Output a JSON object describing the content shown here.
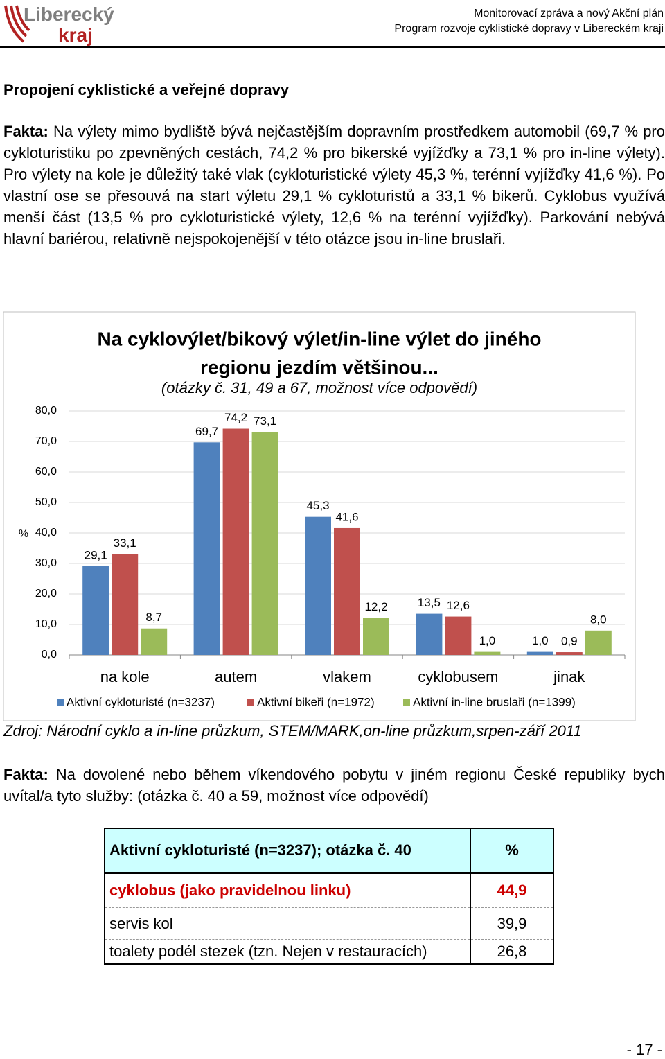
{
  "header": {
    "logo_top": "Liberecký",
    "logo_bottom": "kraj",
    "line1": "Monitorovací zpráva a nový Akční plán",
    "line2": "Program rozvoje cyklistické dopravy v Libereckém kraji"
  },
  "heading": "Propojení cyklistické a veřejné dopravy",
  "paragraph1": {
    "label": "Fakta:",
    "text": "Na výlety mimo bydliště bývá nejčastějším dopravním prostředkem automobil (69,7 % pro cykloturistiku po zpevněných cestách, 74,2 % pro bikerské vyjížďky a 73,1 % pro in-line výlety). Pro výlety na kole je důležitý také vlak (cykloturistické výlety 45,3 %, terénní vyjížďky 41,6 %). Po vlastní ose se přesouvá na start výletu 29,1 % cykloturistů a 33,1 % bikerů. Cyklobus využívá menší část (13,5 % pro cykloturistické výlety, 12,6 % na terénní vyjížďky). Parkování nebývá hlavní bariérou, relativně nejspokojenější v této otázce jsou in-line bruslaři."
  },
  "chart_data": {
    "type": "bar",
    "title": [
      "Na cyklovýlet/bikový výlet/in-line výlet do jiného",
      "regionu jezdím většinou..."
    ],
    "subtitle": "(otázky č. 31, 49 a 67, možnost více odpovědí)",
    "y_label": "%",
    "categories": [
      "na kole",
      "autem",
      "vlakem",
      "cyklobusem",
      "jinak"
    ],
    "series": [
      {
        "name": "Aktivní cykloturisté (n=3237)",
        "color": "#4f81bd",
        "values": [
          29.1,
          69.7,
          45.3,
          13.5,
          1.0
        ],
        "value_labels": [
          "29,1",
          "69,7",
          "45,3",
          "13,5",
          "1,0"
        ]
      },
      {
        "name": "Aktivní bikeři (n=1972)",
        "color": "#c0504d",
        "values": [
          33.1,
          74.2,
          41.6,
          12.6,
          0.9
        ],
        "value_labels": [
          "33,1",
          "74,2",
          "41,6",
          "12,6",
          "0,9"
        ]
      },
      {
        "name": "Aktivní in-line bruslaři (n=1399)",
        "color": "#9bbb59",
        "values": [
          8.7,
          73.1,
          12.2,
          1.0,
          8.0
        ],
        "value_labels": [
          "8,7",
          "73,1",
          "12,2",
          "1,0",
          "8,0"
        ]
      }
    ],
    "ylim": [
      0,
      80
    ],
    "yticks": [
      {
        "value": 0,
        "label": "0,0"
      },
      {
        "value": 10,
        "label": "10,0"
      },
      {
        "value": 20,
        "label": "20,0"
      },
      {
        "value": 30,
        "label": "30,0"
      },
      {
        "value": 40,
        "label": "40,0"
      },
      {
        "value": 50,
        "label": "50,0"
      },
      {
        "value": 60,
        "label": "60,0"
      },
      {
        "value": 70,
        "label": "70,0"
      },
      {
        "value": 80,
        "label": "80,0"
      }
    ],
    "grid": true,
    "legend": "bottom"
  },
  "source": "Zdroj: Národní cyklo a in-line průzkum, STEM/MARK,on-line průzkum,srpen-září 2011",
  "paragraph2": {
    "label": "Fakta:",
    "text": "Na dovolené nebo během víkendového pobytu v jiném regionu České republiky bych uvítal/a tyto služby: (otázka č. 40 a 59, možnost více odpovědí)"
  },
  "table": {
    "header": [
      "Aktivní cykloturisté (n=3237); otázka č. 40",
      "%"
    ],
    "rows": [
      [
        "cyklobus (jako pravidelnou linku)",
        "44,9"
      ],
      [
        "servis kol",
        "39,9"
      ],
      [
        "toalety podél stezek (tzn. Nejen v restauracích)",
        "26,8"
      ]
    ]
  },
  "page_number": "- 17 -"
}
